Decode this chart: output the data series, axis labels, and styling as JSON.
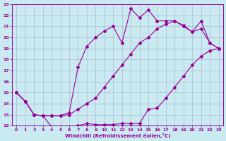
{
  "xlabel": "Windchill (Refroidissement éolien,°C)",
  "bg_color": "#c8eaf0",
  "grid_color": "#b0b8d0",
  "line_color": "#990099",
  "xlim": [
    -0.5,
    23.5
  ],
  "ylim": [
    12,
    23
  ],
  "xticks": [
    0,
    1,
    2,
    3,
    4,
    5,
    6,
    7,
    8,
    9,
    10,
    11,
    12,
    13,
    14,
    15,
    16,
    17,
    18,
    19,
    20,
    21,
    22,
    23
  ],
  "yticks": [
    12,
    13,
    14,
    15,
    16,
    17,
    18,
    19,
    20,
    21,
    22,
    23
  ],
  "line1_x": [
    0,
    1,
    2,
    3,
    4,
    5,
    6,
    7,
    8,
    9,
    10,
    11,
    12,
    13,
    14,
    15,
    16,
    17,
    18,
    19,
    20,
    21,
    22,
    23
  ],
  "line1_y": [
    15.0,
    14.2,
    13.0,
    12.9,
    11.9,
    11.9,
    11.9,
    12.0,
    12.2,
    12.1,
    12.1,
    12.1,
    12.2,
    12.2,
    12.2,
    13.5,
    13.6,
    14.5,
    15.5,
    16.5,
    17.5,
    18.3,
    18.8,
    19.0
  ],
  "line2_x": [
    0,
    1,
    2,
    3,
    4,
    5,
    6,
    7,
    8,
    9,
    10,
    11,
    12,
    13,
    14,
    15,
    16,
    17,
    18,
    19,
    20,
    21,
    22,
    23
  ],
  "line2_y": [
    15.0,
    14.2,
    13.0,
    12.9,
    12.9,
    12.9,
    13.0,
    13.5,
    14.0,
    14.5,
    15.5,
    16.5,
    17.5,
    18.5,
    19.5,
    20.0,
    20.8,
    21.2,
    21.5,
    21.0,
    20.5,
    20.8,
    19.5,
    19.0
  ],
  "line3_x": [
    0,
    1,
    2,
    3,
    4,
    5,
    6,
    7,
    8,
    9,
    10,
    11,
    12,
    13,
    14,
    15,
    16,
    17,
    18,
    19,
    20,
    21,
    22,
    23
  ],
  "line3_y": [
    15.0,
    14.2,
    13.0,
    12.9,
    12.9,
    12.9,
    13.2,
    17.3,
    19.2,
    20.0,
    20.6,
    21.0,
    19.5,
    22.6,
    21.8,
    22.5,
    21.5,
    21.5,
    21.5,
    21.1,
    20.5,
    21.5,
    19.5,
    19.0
  ]
}
